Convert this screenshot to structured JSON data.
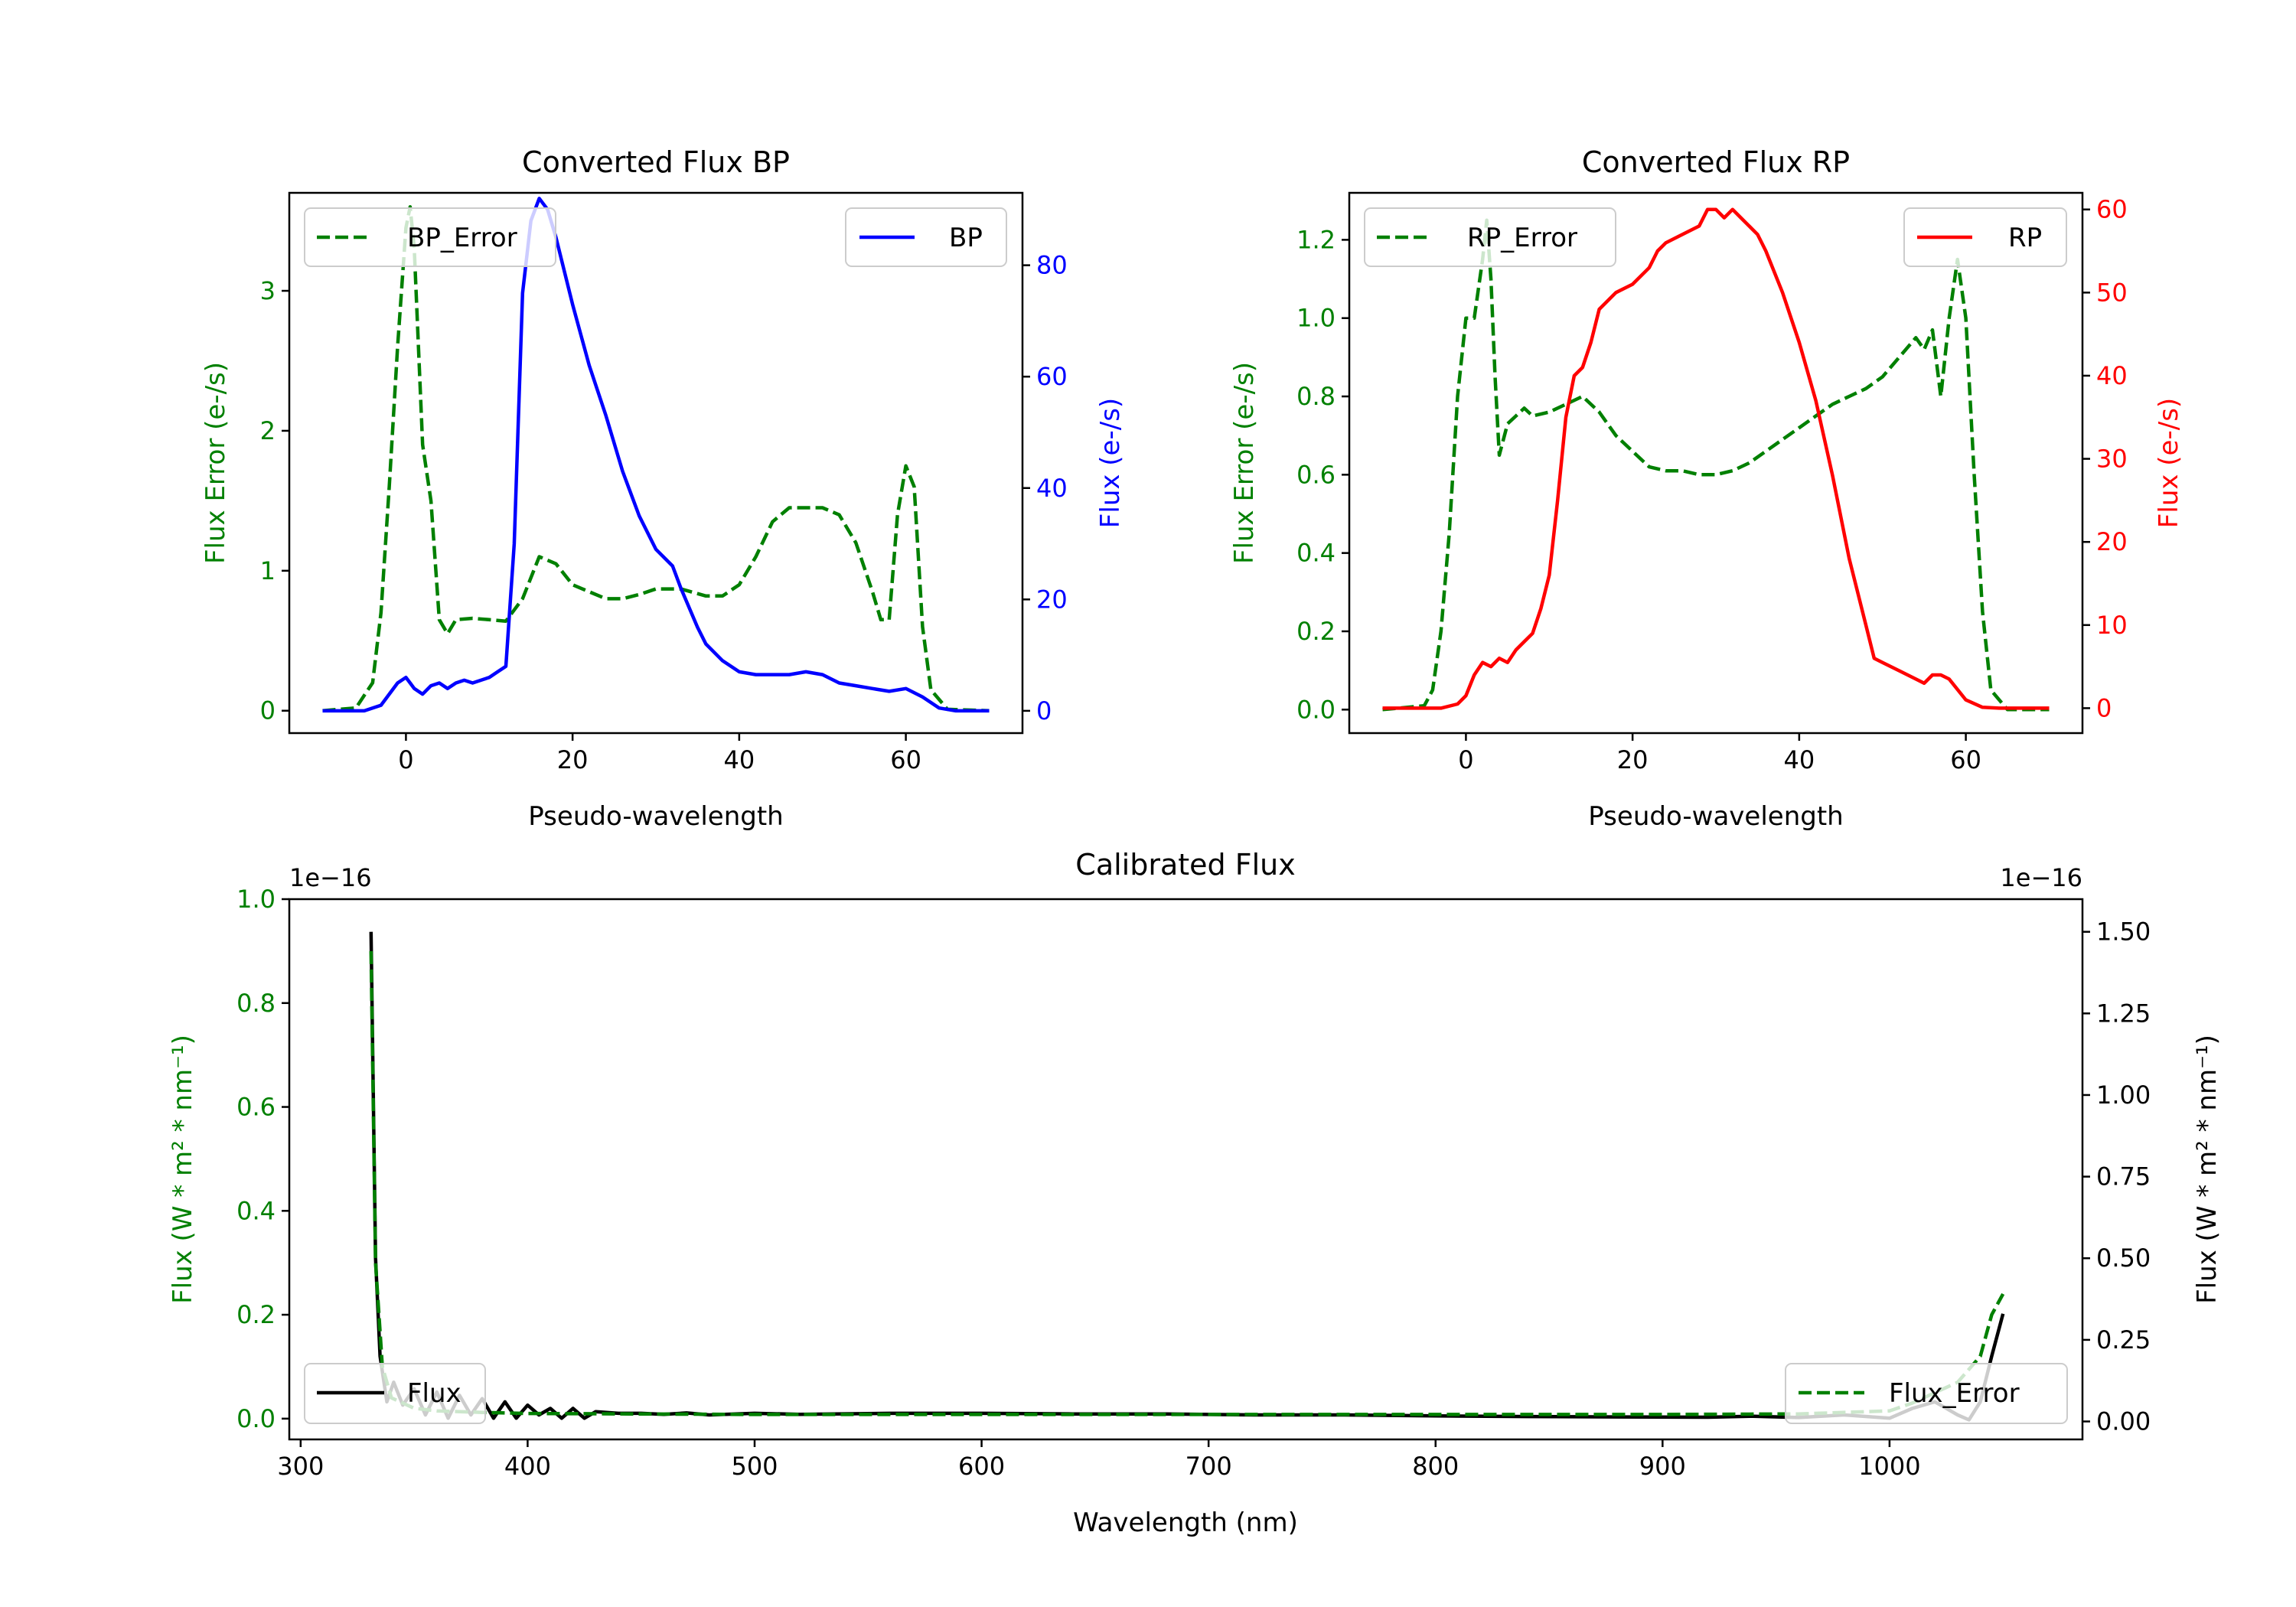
{
  "colors": {
    "green": "#008000",
    "blue": "#0000ff",
    "red": "#ff0000",
    "black": "#000000"
  },
  "chart_data": [
    {
      "id": "bp",
      "type": "line",
      "title": "Converted Flux BP",
      "xlabel": "Pseudo-wavelength",
      "ylabel_left": "Flux Error (e-/s)",
      "ylabel_right": "Flux (e-/s)",
      "xlim": [
        -14,
        74
      ],
      "xticks": [
        0,
        20,
        40,
        60
      ],
      "xtick_labels": [
        "0",
        "20",
        "40",
        "60"
      ],
      "ylim_left": [
        -0.16,
        3.7
      ],
      "yticks_left": [
        0,
        1,
        2,
        3
      ],
      "ytick_labels_left": [
        "0",
        "1",
        "2",
        "3"
      ],
      "ylim_right": [
        -4,
        93
      ],
      "yticks_right": [
        0,
        20,
        40,
        60,
        80
      ],
      "ytick_labels_right": [
        "0",
        "20",
        "40",
        "60",
        "80"
      ],
      "series": [
        {
          "name": "BP_Error",
          "axis": "left",
          "style": "dashed",
          "color": "#008000",
          "x": [
            -10,
            -6,
            -4,
            -3,
            -2,
            -1,
            0,
            0.5,
            1,
            2,
            3,
            4,
            5,
            6,
            8,
            10,
            12,
            14,
            16,
            18,
            20,
            22,
            24,
            26,
            28,
            30,
            33,
            36,
            38,
            40,
            42,
            44,
            46,
            48,
            50,
            52,
            54,
            56,
            57,
            58,
            59,
            60,
            61,
            62,
            63,
            65,
            70
          ],
          "y": [
            0,
            0.02,
            0.2,
            0.7,
            1.6,
            2.6,
            3.45,
            3.6,
            3.3,
            1.9,
            1.5,
            0.65,
            0.55,
            0.65,
            0.66,
            0.65,
            0.64,
            0.8,
            1.1,
            1.05,
            0.9,
            0.85,
            0.8,
            0.8,
            0.83,
            0.87,
            0.87,
            0.82,
            0.82,
            0.9,
            1.1,
            1.35,
            1.45,
            1.45,
            1.45,
            1.4,
            1.2,
            0.85,
            0.65,
            0.65,
            1.4,
            1.75,
            1.6,
            0.6,
            0.15,
            0.01,
            0
          ]
        },
        {
          "name": "BP",
          "axis": "right",
          "style": "solid",
          "color": "#0000ff",
          "x": [
            -10,
            -5,
            -3,
            -2,
            -1,
            0,
            0.5,
            1,
            2,
            3,
            4,
            5,
            6,
            7,
            8,
            9,
            10,
            11,
            12,
            13,
            14,
            15,
            16,
            17,
            18,
            20,
            22,
            24,
            26,
            28,
            30,
            32,
            33,
            35,
            36,
            38,
            40,
            42,
            44,
            46,
            48,
            50,
            52,
            54,
            56,
            58,
            60,
            62,
            64,
            66,
            70
          ],
          "y": [
            0,
            0,
            1,
            3,
            5,
            6,
            5,
            4,
            3,
            4.5,
            5,
            4,
            5,
            5.5,
            5,
            5.5,
            6,
            7,
            8,
            30,
            75,
            88,
            92,
            90,
            85,
            73,
            62,
            53,
            43,
            35,
            29,
            26,
            22,
            15,
            12,
            9,
            7,
            6.5,
            6.5,
            6.5,
            7,
            6.5,
            5,
            4.5,
            4,
            3.5,
            4,
            2.5,
            0.5,
            0,
            0
          ]
        }
      ],
      "legend_left": {
        "label": "BP_Error",
        "placement": "upper left"
      },
      "legend_right": {
        "label": "BP",
        "placement": "upper right"
      }
    },
    {
      "id": "rp",
      "type": "line",
      "title": "Converted Flux RP",
      "xlabel": "Pseudo-wavelength",
      "ylabel_left": "Flux Error (e-/s)",
      "ylabel_right": "Flux (e-/s)",
      "xlim": [
        -14,
        74
      ],
      "xticks": [
        0,
        20,
        40,
        60
      ],
      "xtick_labels": [
        "0",
        "20",
        "40",
        "60"
      ],
      "ylim_left": [
        -0.06,
        1.32
      ],
      "yticks_left": [
        0,
        0.2,
        0.4,
        0.6,
        0.8,
        1.0,
        1.2
      ],
      "ytick_labels_left": [
        "0.0",
        "0.2",
        "0.4",
        "0.6",
        "0.8",
        "1.0",
        "1.2"
      ],
      "ylim_right": [
        -3,
        62
      ],
      "yticks_right": [
        0,
        10,
        20,
        30,
        40,
        50,
        60
      ],
      "ytick_labels_right": [
        "0",
        "10",
        "20",
        "30",
        "40",
        "50",
        "60"
      ],
      "series": [
        {
          "name": "RP_Error",
          "axis": "left",
          "style": "dashed",
          "color": "#008000",
          "x": [
            -10,
            -5,
            -4,
            -3,
            -2,
            -1,
            0,
            1,
            2,
            2.5,
            3,
            3.5,
            4,
            5,
            6,
            7,
            8,
            10,
            12,
            14,
            16,
            18,
            20,
            22,
            24,
            26,
            28,
            30,
            32,
            34,
            36,
            38,
            40,
            42,
            44,
            46,
            48,
            50,
            52,
            54,
            55,
            56,
            57,
            58,
            59,
            60,
            61,
            62,
            63,
            65,
            70
          ],
          "y": [
            0,
            0.01,
            0.05,
            0.2,
            0.45,
            0.8,
            1.0,
            1.0,
            1.15,
            1.25,
            1.1,
            0.85,
            0.65,
            0.73,
            0.75,
            0.77,
            0.75,
            0.76,
            0.78,
            0.8,
            0.76,
            0.7,
            0.66,
            0.62,
            0.61,
            0.61,
            0.6,
            0.6,
            0.61,
            0.63,
            0.66,
            0.69,
            0.72,
            0.75,
            0.78,
            0.8,
            0.82,
            0.85,
            0.9,
            0.95,
            0.92,
            0.97,
            0.8,
            1.0,
            1.15,
            1.0,
            0.6,
            0.25,
            0.05,
            0,
            0
          ]
        },
        {
          "name": "RP",
          "axis": "right",
          "style": "solid",
          "color": "#ff0000",
          "x": [
            -10,
            -3,
            -1,
            0,
            1,
            2,
            3,
            4,
            5,
            6,
            7,
            8,
            9,
            10,
            11,
            12,
            13,
            14,
            15,
            16,
            18,
            20,
            22,
            23,
            24,
            26,
            28,
            29,
            30,
            31,
            32,
            33,
            34,
            35,
            36,
            38,
            40,
            42,
            44,
            46,
            48,
            49,
            50,
            52,
            54,
            55,
            56,
            57,
            58,
            60,
            62,
            64,
            70
          ],
          "y": [
            0,
            0,
            0.5,
            1.5,
            4,
            5.5,
            5,
            6,
            5.5,
            7,
            8,
            9,
            12,
            16,
            25,
            35,
            40,
            41,
            44,
            48,
            50,
            51,
            53,
            55,
            56,
            57,
            58,
            60,
            60,
            59,
            60,
            59,
            58,
            57,
            55,
            50,
            44,
            37,
            28,
            18,
            10,
            6,
            5.5,
            4.5,
            3.5,
            3,
            4,
            4,
            3.5,
            1,
            0.1,
            0,
            0
          ]
        }
      ],
      "legend_left": {
        "label": "RP_Error",
        "placement": "upper left"
      },
      "legend_right": {
        "label": "RP",
        "placement": "upper right"
      }
    },
    {
      "id": "cal",
      "type": "line",
      "title": "Calibrated Flux",
      "xlabel": "Wavelength (nm)",
      "ylabel_left": "Flux (W * m² * nm⁻¹)",
      "ylabel_right": "Flux (W * m² * nm⁻¹)",
      "offset_left": "1e−16",
      "offset_right": "1e−16",
      "xlim": [
        295,
        1085
      ],
      "xticks": [
        300,
        400,
        500,
        600,
        700,
        800,
        900,
        1000
      ],
      "xtick_labels": [
        "300",
        "400",
        "500",
        "600",
        "700",
        "800",
        "900",
        "1000"
      ],
      "ylim_left": [
        -0.04,
        1.0
      ],
      "yticks_left": [
        0,
        0.2,
        0.4,
        0.6,
        0.8,
        1.0
      ],
      "ytick_labels_left": [
        "0.0",
        "0.2",
        "0.4",
        "0.6",
        "0.8",
        "1.0"
      ],
      "ylim_right": [
        -0.055,
        1.6
      ],
      "yticks_right": [
        0,
        0.25,
        0.5,
        0.75,
        1.0,
        1.25,
        1.5
      ],
      "ytick_labels_right": [
        "0.00",
        "0.25",
        "0.50",
        "0.75",
        "1.00",
        "1.25",
        "1.50"
      ],
      "series": [
        {
          "name": "Flux",
          "axis": "right",
          "style": "solid",
          "color": "#000000",
          "x": [
            331,
            333,
            335,
            338,
            341,
            345,
            350,
            355,
            360,
            365,
            370,
            375,
            380,
            385,
            390,
            395,
            400,
            405,
            410,
            415,
            420,
            425,
            430,
            440,
            450,
            460,
            470,
            480,
            500,
            520,
            560,
            600,
            640,
            680,
            720,
            760,
            800,
            840,
            880,
            920,
            940,
            960,
            980,
            1000,
            1010,
            1020,
            1030,
            1035,
            1040,
            1045,
            1050
          ],
          "y": [
            1.5,
            0.5,
            0.2,
            0.06,
            0.12,
            0.05,
            0.1,
            0.02,
            0.09,
            0.01,
            0.08,
            0.02,
            0.07,
            0.01,
            0.06,
            0.01,
            0.05,
            0.02,
            0.04,
            0.01,
            0.04,
            0.01,
            0.03,
            0.025,
            0.025,
            0.022,
            0.026,
            0.02,
            0.025,
            0.022,
            0.025,
            0.025,
            0.023,
            0.023,
            0.02,
            0.02,
            0.017,
            0.015,
            0.014,
            0.013,
            0.016,
            0.012,
            0.02,
            0.01,
            0.04,
            0.06,
            0.02,
            0.005,
            0.06,
            0.2,
            0.33
          ]
        },
        {
          "name": "Flux_Error",
          "axis": "left",
          "style": "dashed",
          "color": "#008000",
          "x": [
            331,
            333,
            336,
            340,
            350,
            360,
            380,
            400,
            500,
            600,
            700,
            800,
            900,
            960,
            1000,
            1010,
            1020,
            1030,
            1040,
            1045,
            1050
          ],
          "y": [
            0.9,
            0.3,
            0.1,
            0.04,
            0.02,
            0.015,
            0.012,
            0.01,
            0.008,
            0.008,
            0.008,
            0.008,
            0.008,
            0.009,
            0.015,
            0.03,
            0.05,
            0.07,
            0.12,
            0.2,
            0.24
          ]
        }
      ],
      "legend_left": {
        "label": "Flux",
        "placement": "lower left"
      },
      "legend_right": {
        "label": "Flux_Error",
        "placement": "lower right"
      }
    }
  ]
}
